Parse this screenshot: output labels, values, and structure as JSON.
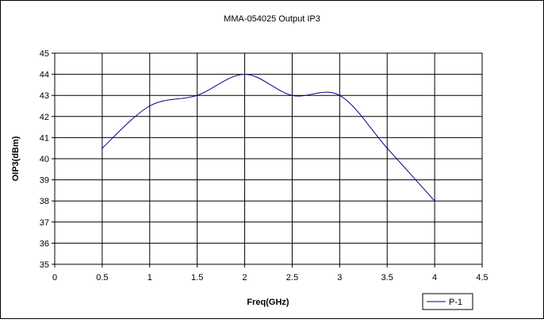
{
  "chart_data": {
    "type": "line",
    "title": "MMA-054025 Output IP3",
    "xlabel": "Freq(GHz)",
    "ylabel": "OIP3(dBm)",
    "xlim": [
      0,
      4.5
    ],
    "ylim": [
      35,
      45
    ],
    "x_ticks": [
      "0",
      "0.5",
      "1",
      "1.5",
      "2",
      "2.5",
      "3",
      "3.5",
      "4",
      "4.5"
    ],
    "y_ticks": [
      "35",
      "36",
      "37",
      "38",
      "39",
      "40",
      "41",
      "42",
      "43",
      "44",
      "45"
    ],
    "grid": true,
    "legend_position": "bottom-right",
    "series": [
      {
        "name": "P-1",
        "color": "#000080",
        "x": [
          0.5,
          1,
          1.5,
          2,
          2.5,
          3,
          3.5,
          4
        ],
        "y": [
          40.5,
          42.5,
          43,
          44,
          43,
          43,
          40.5,
          38
        ]
      }
    ]
  }
}
